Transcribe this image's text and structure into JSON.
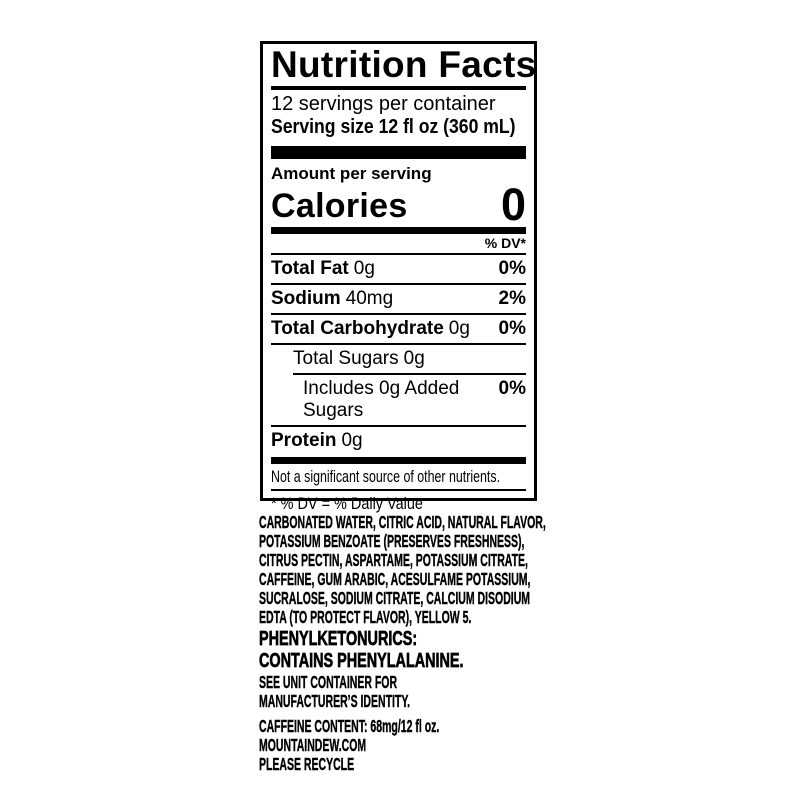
{
  "colors": {
    "text": "#000000",
    "background": "#ffffff"
  },
  "label": {
    "title": "Nutrition Facts",
    "servings_per_container": "12 servings per container",
    "serving_size": "Serving size 12 fl oz (360 mL)",
    "amount_per_serving": "Amount per serving",
    "calories_label": "Calories",
    "calories_value": "0",
    "dv_header": "% DV*",
    "rows": [
      {
        "name": "Total Fat",
        "amount": "0g",
        "dv": "0%"
      },
      {
        "name": "Sodium",
        "amount": "40mg",
        "dv": "2%"
      },
      {
        "name": "Total Carbohydrate",
        "amount": "0g",
        "dv": "0%"
      },
      {
        "name": "Total Sugars",
        "amount": "0g",
        "dv": ""
      },
      {
        "name": "Includes 0g Added Sugars",
        "amount": "",
        "dv": "0%"
      },
      {
        "name": "Protein",
        "amount": "0g",
        "dv": ""
      }
    ],
    "footnote_nutrients": "Not a significant source of other nutrients.",
    "footnote_dv": "* % DV = % Daily Value"
  },
  "ingredients": {
    "lines": [
      "CARBONATED WATER, CITRIC ACID, NATURAL FLAVOR,",
      "POTASSIUM BENZOATE (PRESERVES FRESHNESS),",
      "CITRUS PECTIN, ASPARTAME, POTASSIUM CITRATE,",
      "CAFFEINE, GUM ARABIC, ACESULFAME POTASSIUM,",
      "SUCRALOSE, SODIUM CITRATE, CALCIUM DISODIUM",
      "EDTA (TO PROTECT FLAVOR), YELLOW 5."
    ]
  },
  "warning": {
    "lines": [
      "PHENYLKETONURICS:",
      "CONTAINS PHENYLALANINE."
    ]
  },
  "manufacturer": {
    "lines": [
      "SEE UNIT CONTAINER FOR",
      "MANUFACTURER’S IDENTITY."
    ]
  },
  "footer": {
    "caffeine": "CAFFEINE CONTENT: 68mg/12 fl oz.",
    "website": "MOUNTAINDEW.COM",
    "recycle": "PLEASE RECYCLE"
  }
}
